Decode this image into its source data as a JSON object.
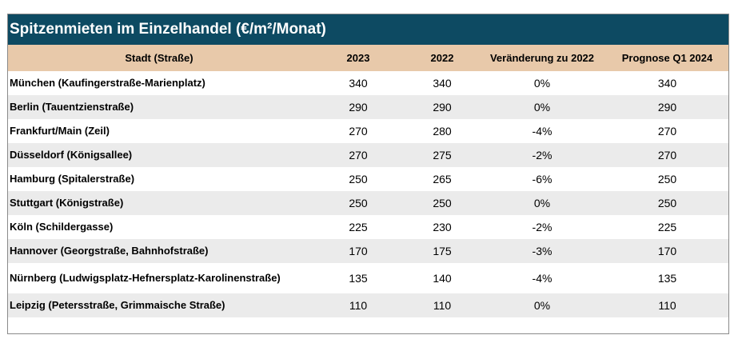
{
  "title": "Spitzenmieten im Einzelhandel (€/m²/Monat)",
  "columns": {
    "city": "Stadt (Straße)",
    "y2023": "2023",
    "y2022": "2022",
    "change": "Veränderung zu 2022",
    "forecast": "Prognose Q1 2024"
  },
  "rows": [
    {
      "city": "München (Kaufingerstraße-Marienplatz)",
      "y2023": "340",
      "y2022": "340",
      "change": "0%",
      "forecast": "340"
    },
    {
      "city": "Berlin (Tauentzienstraße)",
      "y2023": "290",
      "y2022": "290",
      "change": "0%",
      "forecast": "290"
    },
    {
      "city": "Frankfurt/Main (Zeil)",
      "y2023": "270",
      "y2022": "280",
      "change": "-4%",
      "forecast": "270"
    },
    {
      "city": "Düsseldorf (Königsallee)",
      "y2023": "270",
      "y2022": "275",
      "change": "-2%",
      "forecast": "270"
    },
    {
      "city": "Hamburg (Spitalerstraße)",
      "y2023": "250",
      "y2022": "265",
      "change": "-6%",
      "forecast": "250"
    },
    {
      "city": "Stuttgart (Königstraße)",
      "y2023": "250",
      "y2022": "250",
      "change": "0%",
      "forecast": "250"
    },
    {
      "city": "Köln (Schildergasse)",
      "y2023": "225",
      "y2022": "230",
      "change": "-2%",
      "forecast": "225"
    },
    {
      "city": "Hannover (Georgstraße, Bahnhofstraße)",
      "y2023": "170",
      "y2022": "175",
      "change": "-3%",
      "forecast": "170"
    },
    {
      "city": "Nürnberg (Ludwigsplatz-Hefnersplatz-Karolinenstraße)",
      "y2023": "135",
      "y2022": "140",
      "change": "-4%",
      "forecast": "135"
    },
    {
      "city": "Leipzig  (Petersstraße, Grimmaische Straße)",
      "y2023": "110",
      "y2022": "110",
      "change": "0%",
      "forecast": "110"
    }
  ],
  "colors": {
    "title_bg": "#0d4a62",
    "header_bg": "#e8c9aa",
    "row_shade": "#ebebeb"
  }
}
